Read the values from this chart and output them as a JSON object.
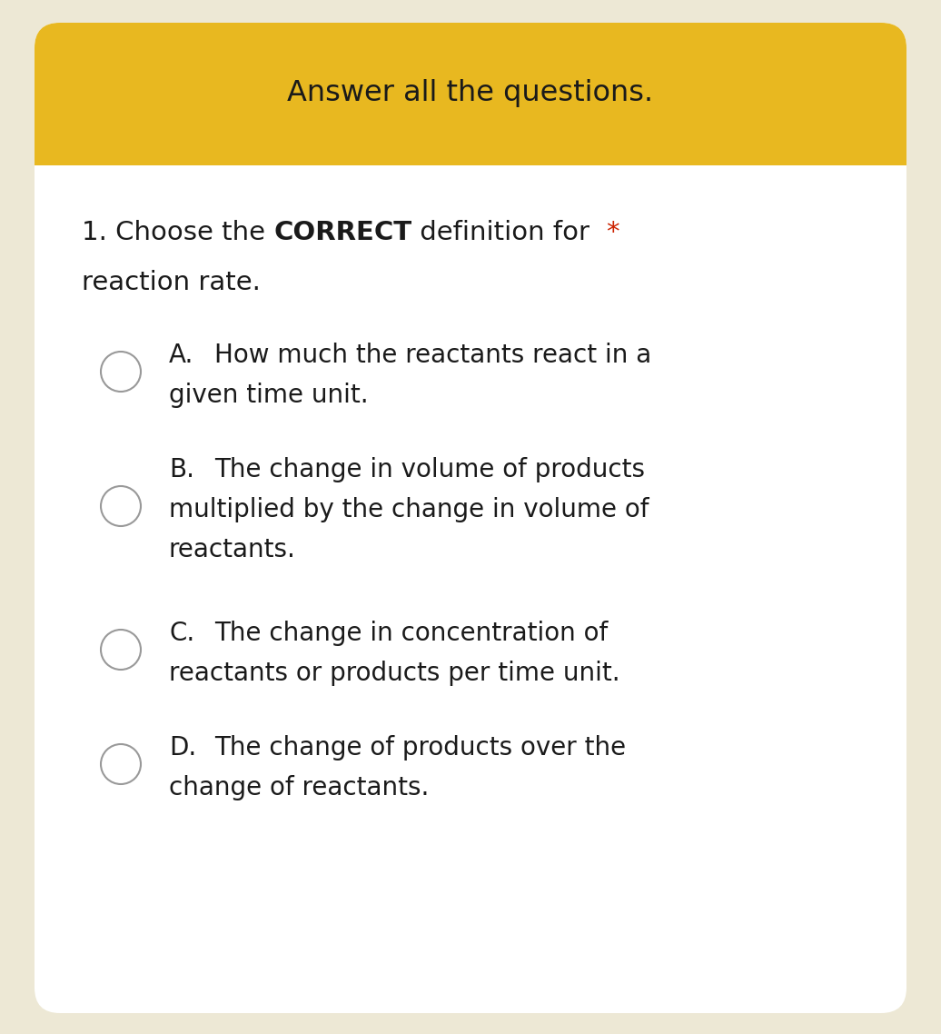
{
  "background_color": "#ede8d5",
  "header_color": "#e8b820",
  "header_text": "Answer all the questions.",
  "header_text_color": "#1a1a1a",
  "card_color": "#ffffff",
  "asterisk": "*",
  "asterisk_color": "#cc2200",
  "options": [
    {
      "letter": "A.",
      "line1": "How much the reactants react in a",
      "line2": "given time unit.",
      "line3": ""
    },
    {
      "letter": "B.",
      "line1": "The change in volume of products",
      "line2": "multiplied by the change in volume of",
      "line3": "reactants."
    },
    {
      "letter": "C.",
      "line1": "The change in concentration of",
      "line2": "reactants or products per time unit.",
      "line3": ""
    },
    {
      "letter": "D.",
      "line1": "The change of products over the",
      "line2": "change of reactants.",
      "line3": ""
    }
  ],
  "circle_color": "#999999",
  "circle_lw": 1.5,
  "text_color": "#1a1a1a",
  "font_size_header": 23,
  "font_size_question": 21,
  "font_size_option": 20
}
